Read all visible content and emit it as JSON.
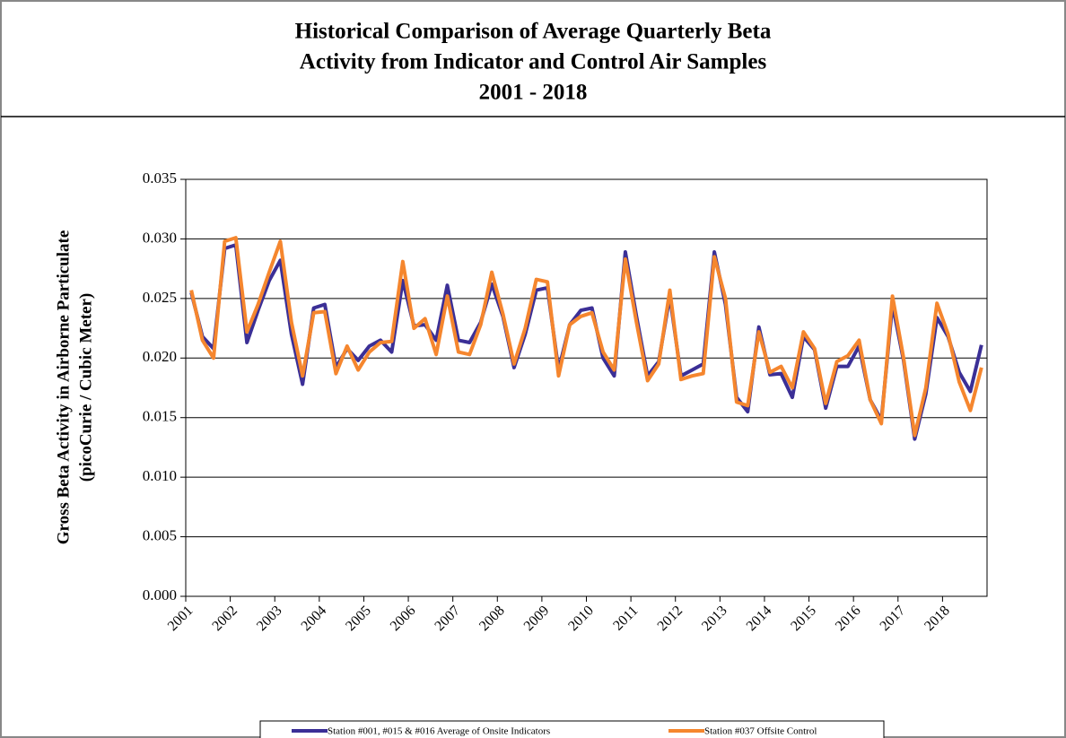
{
  "chart_data": {
    "type": "line",
    "title": [
      "Historical Comparison of Average Quarterly Beta",
      "Activity from Indicator and Control Air Samples",
      "2001 - 2018"
    ],
    "ylabel": [
      "Gross Beta Activity in Airborne Particulate",
      "(picoCurie / Cubic Meter)"
    ],
    "categories": [
      "2001",
      null,
      null,
      null,
      "2002",
      null,
      null,
      null,
      "2003",
      null,
      null,
      null,
      "2004",
      null,
      null,
      null,
      "2005",
      null,
      null,
      null,
      "2006",
      null,
      null,
      null,
      "2007",
      null,
      null,
      null,
      "2008",
      null,
      null,
      null,
      "2009",
      null,
      null,
      null,
      "2010",
      null,
      null,
      null,
      "2011",
      null,
      null,
      null,
      "2012",
      null,
      null,
      null,
      "2013",
      null,
      null,
      null,
      "2014",
      null,
      null,
      null,
      "2015",
      null,
      null,
      null,
      "2016",
      null,
      null,
      null,
      "2017",
      null,
      null,
      null,
      "2018",
      null,
      null,
      null
    ],
    "ylim": [
      0,
      0.035
    ],
    "yticks": [
      {
        "value": 0,
        "label": "0.000"
      },
      {
        "value": 0.005,
        "label": "0.005"
      },
      {
        "value": 0.01,
        "label": "0.010"
      },
      {
        "value": 0.015,
        "label": "0.015"
      },
      {
        "value": 0.02,
        "label": "0.020"
      },
      {
        "value": 0.025,
        "label": "0.025"
      },
      {
        "value": 0.03,
        "label": "0.030"
      },
      {
        "value": 0.035,
        "label": "0.035"
      }
    ],
    "grid": true,
    "legend": "bottom",
    "series": [
      {
        "name": "Station #001, #015 & #016 Average of Onsite Indicators",
        "color": "#3b2f96",
        "values": [
          0.0255,
          0.0218,
          0.0208,
          0.0292,
          0.0295,
          0.0213,
          0.024,
          0.0265,
          0.0282,
          0.022,
          0.0178,
          0.0242,
          0.0245,
          0.0192,
          0.0208,
          0.0198,
          0.021,
          0.0215,
          0.0205,
          0.0265,
          0.0227,
          0.0228,
          0.0215,
          0.0261,
          0.0215,
          0.0213,
          0.023,
          0.0262,
          0.0235,
          0.0192,
          0.022,
          0.0257,
          0.0259,
          0.019,
          0.0228,
          0.024,
          0.0242,
          0.02,
          0.0185,
          0.0289,
          0.0235,
          0.0185,
          0.0197,
          0.0252,
          0.0185,
          0.019,
          0.0195,
          0.0289,
          0.0245,
          0.0167,
          0.0155,
          0.0226,
          0.0186,
          0.0187,
          0.0167,
          0.0218,
          0.0207,
          0.0158,
          0.0193,
          0.0193,
          0.021,
          0.0165,
          0.0148,
          0.0245,
          0.0198,
          0.0132,
          0.017,
          0.0234,
          0.0218,
          0.0188,
          0.0172,
          0.0211
        ]
      },
      {
        "name": "Station #037 Offsite Control",
        "color": "#f5862e",
        "values": [
          0.0257,
          0.0215,
          0.02,
          0.0298,
          0.0301,
          0.0222,
          0.0245,
          0.0272,
          0.0298,
          0.023,
          0.0185,
          0.0238,
          0.0239,
          0.0187,
          0.021,
          0.019,
          0.0205,
          0.0213,
          0.0214,
          0.0281,
          0.0225,
          0.0233,
          0.0203,
          0.0252,
          0.0205,
          0.0203,
          0.0228,
          0.0272,
          0.0237,
          0.0195,
          0.0225,
          0.0266,
          0.0264,
          0.0185,
          0.0228,
          0.0235,
          0.0238,
          0.0205,
          0.019,
          0.0283,
          0.023,
          0.0181,
          0.0195,
          0.0257,
          0.0182,
          0.0185,
          0.0187,
          0.0285,
          0.025,
          0.0163,
          0.016,
          0.0222,
          0.0188,
          0.0193,
          0.0175,
          0.0222,
          0.0208,
          0.0162,
          0.0197,
          0.0202,
          0.0215,
          0.0165,
          0.0145,
          0.0252,
          0.02,
          0.0135,
          0.0175,
          0.0246,
          0.022,
          0.018,
          0.0156,
          0.0192
        ]
      }
    ]
  }
}
